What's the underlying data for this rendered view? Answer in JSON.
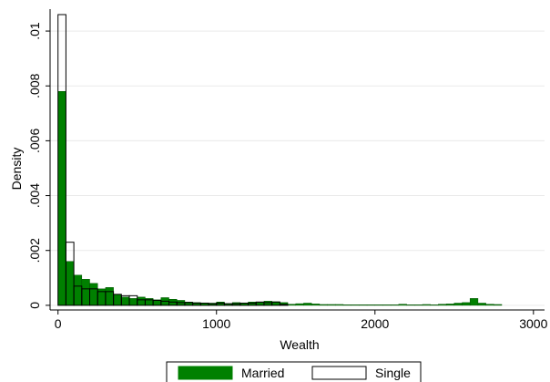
{
  "chart_data": {
    "type": "histogram",
    "x_label": "Wealth",
    "y_label": "Density",
    "xlim": [
      -50,
      3070
    ],
    "ylim": [
      -0.00017,
      0.0108
    ],
    "xticks": [
      0,
      1000,
      2000,
      3000
    ],
    "yticks": [
      0,
      {
        "value": 0.002,
        "label": ".002"
      },
      {
        "value": 0.004,
        "label": ".004"
      },
      {
        "value": 0.006,
        "label": ".006"
      },
      {
        "value": 0.008,
        "label": ".008"
      },
      {
        "value": 0.01,
        "label": ".01"
      }
    ],
    "grid": true,
    "series": [
      {
        "name": "Married",
        "color": "#008000",
        "fill": true,
        "bins": [
          0,
          50,
          100,
          150,
          200,
          250,
          300,
          350,
          400,
          450,
          500,
          550,
          600,
          650,
          700,
          750,
          800,
          850,
          900,
          950,
          1000,
          1050,
          1100,
          1150,
          1200,
          1250,
          1300,
          1350,
          1400,
          1450,
          1500,
          1550,
          1600,
          1650,
          1700,
          1750,
          1800,
          1850,
          1900,
          1950,
          2000,
          2050,
          2100,
          2150,
          2200,
          2250,
          2300,
          2350,
          2400,
          2450,
          2500,
          2550,
          2600,
          2650,
          2700,
          2750,
          2800
        ],
        "values": [
          0.0078,
          0.0016,
          0.0011,
          0.00095,
          0.0008,
          0.0006,
          0.00065,
          0.0004,
          0.0003,
          0.00025,
          0.0003,
          0.00025,
          0.0002,
          0.00028,
          0.00022,
          0.00018,
          0.00012,
          0.0001,
          8e-05,
          8e-05,
          0.00012,
          6e-05,
          0.0001,
          8e-05,
          0.00012,
          0.0001,
          0.00015,
          0.00013,
          0.0001,
          4e-05,
          6e-05,
          8e-05,
          5e-05,
          3e-05,
          3e-05,
          3e-05,
          2e-05,
          2e-05,
          2e-05,
          2e-05,
          2e-05,
          2e-05,
          2e-05,
          4e-05,
          2e-05,
          2e-05,
          3e-05,
          2e-05,
          4e-05,
          5e-05,
          8e-05,
          0.0001,
          0.00025,
          8e-05,
          4e-05,
          3e-05
        ]
      },
      {
        "name": "Single",
        "color": "#000000",
        "fill": false,
        "bins": [
          0,
          50,
          100,
          150,
          200,
          250,
          300,
          350,
          400,
          450,
          500,
          550,
          600,
          650,
          700,
          750,
          800,
          850,
          900,
          950,
          1000,
          1050,
          1100,
          1150,
          1200,
          1250,
          1300,
          1350,
          1400,
          1450
        ],
        "values": [
          0.0106,
          0.0023,
          0.0007,
          0.0006,
          0.0006,
          0.0005,
          0.0005,
          0.0004,
          0.00035,
          0.00035,
          0.0002,
          0.0002,
          0.00018,
          0.00015,
          0.00012,
          0.0001,
          0.0001,
          8e-05,
          8e-05,
          6e-05,
          8e-05,
          6e-05,
          6e-05,
          8e-05,
          8e-05,
          0.00012,
          0.0001,
          0.00012,
          3e-05
        ]
      }
    ]
  }
}
